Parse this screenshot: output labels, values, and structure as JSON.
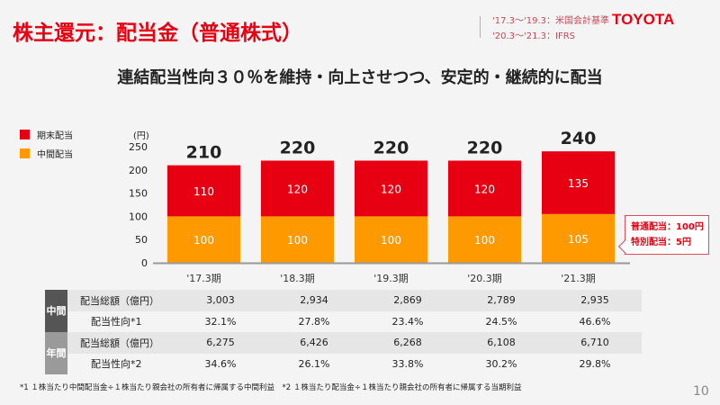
{
  "header": {
    "title": "株主還元：配当金（普通株式）",
    "note1": "'17.3〜'19.3：米国会計基準",
    "note2": "'20.3〜'21.3：IFRS",
    "logo": "TOYOTA"
  },
  "subtitle": "連結配当性向３０％を維持・向上させつつ、安定的・継続的に配当",
  "chart_data": {
    "type": "bar",
    "stacked": true,
    "categories": [
      "'17.3期",
      "'18.3期",
      "'19.3期",
      "'20.3期",
      "'21.3期"
    ],
    "series": [
      {
        "name": "中間配当",
        "color": "#ff9900",
        "values": [
          100,
          100,
          100,
          100,
          105
        ]
      },
      {
        "name": "期末配当",
        "color": "#e60012",
        "values": [
          110,
          120,
          120,
          120,
          135
        ]
      }
    ],
    "totals": [
      210,
      220,
      220,
      220,
      240
    ],
    "ylabel": "(円)",
    "ylim": [
      0,
      250
    ],
    "yticks": [
      0,
      50,
      100,
      150,
      200,
      250
    ],
    "legend": "top-left"
  },
  "callout": {
    "line1": "普通配当：100円",
    "line2": "特別配当：5円"
  },
  "table": {
    "groups": [
      {
        "label": "中間",
        "color": "#555555",
        "rows": [
          {
            "label": "配当総額（億円）",
            "values": [
              "3,003",
              "2,934",
              "2,869",
              "2,789",
              "2,935"
            ]
          },
          {
            "label": "配当性向*1",
            "values": [
              "32.1%",
              "27.8%",
              "23.4%",
              "24.5%",
              "46.6%"
            ]
          }
        ]
      },
      {
        "label": "年間",
        "color": "#9a9a9a",
        "rows": [
          {
            "label": "配当総額（億円）",
            "values": [
              "6,275",
              "6,426",
              "6,268",
              "6,108",
              "6,710"
            ]
          },
          {
            "label": "配当性向*2",
            "values": [
              "34.6%",
              "26.1%",
              "33.8%",
              "30.2%",
              "29.8%"
            ]
          }
        ]
      }
    ]
  },
  "footnote": "*1 １株当たり中間配当金÷１株当たり親会社の所有者に帰属する中間利益　*2 １株当たり配当金÷１株当たり親会社の所有者に帰属する当期利益",
  "page": "10"
}
